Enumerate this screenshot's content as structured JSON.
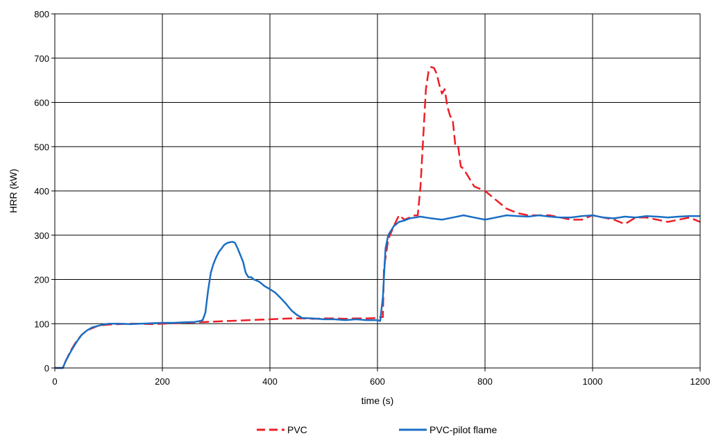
{
  "chart_data": {
    "type": "line",
    "title": "",
    "xlabel": "time (s)",
    "ylabel": "HRR (kW)",
    "xlim": [
      0,
      1200
    ],
    "ylim": [
      0,
      800
    ],
    "xticks": [
      0,
      200,
      400,
      600,
      800,
      1000,
      1200
    ],
    "yticks": [
      0,
      100,
      200,
      300,
      400,
      500,
      600,
      700,
      800
    ],
    "grid": true,
    "legend_position": "bottom",
    "series": [
      {
        "name": "PVC",
        "color": "#ee1c24",
        "style": "dashed",
        "x": [
          0,
          15,
          20,
          30,
          40,
          50,
          60,
          70,
          80,
          90,
          100,
          120,
          140,
          160,
          180,
          200,
          220,
          240,
          260,
          280,
          300,
          320,
          340,
          360,
          380,
          400,
          420,
          440,
          460,
          480,
          500,
          520,
          540,
          560,
          580,
          600,
          605,
          610,
          612,
          620,
          630,
          640,
          650,
          660,
          670,
          675,
          680,
          685,
          690,
          695,
          700,
          705,
          710,
          715,
          720,
          725,
          730,
          735,
          740,
          745,
          750,
          755,
          760,
          770,
          780,
          790,
          800,
          820,
          840,
          860,
          880,
          900,
          920,
          940,
          960,
          980,
          1000,
          1020,
          1040,
          1060,
          1080,
          1100,
          1120,
          1140,
          1160,
          1180,
          1200
        ],
        "y": [
          0,
          0,
          15,
          40,
          60,
          75,
          85,
          90,
          95,
          97,
          98,
          99,
          100,
          100,
          99,
          100,
          101,
          102,
          103,
          104,
          105,
          106,
          107,
          108,
          109,
          110,
          111,
          112,
          112,
          111,
          112,
          112,
          111,
          112,
          112,
          113,
          115,
          115,
          225,
          290,
          320,
          345,
          335,
          340,
          345,
          345,
          410,
          520,
          630,
          670,
          680,
          678,
          665,
          640,
          620,
          630,
          590,
          570,
          560,
          500,
          500,
          455,
          450,
          430,
          410,
          405,
          400,
          380,
          360,
          350,
          345,
          345,
          345,
          340,
          335,
          335,
          345,
          340,
          335,
          325,
          340,
          340,
          335,
          330,
          335,
          340,
          330
        ]
      },
      {
        "name": "PVC-pilot flame",
        "color": "#1a6ec4",
        "style": "solid",
        "x": [
          0,
          15,
          20,
          30,
          40,
          50,
          60,
          70,
          80,
          90,
          100,
          120,
          140,
          160,
          180,
          200,
          220,
          240,
          260,
          270,
          275,
          280,
          285,
          290,
          295,
          300,
          305,
          310,
          315,
          320,
          325,
          330,
          335,
          340,
          345,
          350,
          355,
          360,
          365,
          370,
          380,
          390,
          400,
          410,
          420,
          430,
          440,
          450,
          460,
          480,
          500,
          520,
          540,
          560,
          580,
          600,
          605,
          610,
          615,
          620,
          630,
          640,
          650,
          660,
          670,
          680,
          690,
          700,
          720,
          740,
          760,
          780,
          800,
          820,
          840,
          860,
          880,
          900,
          920,
          940,
          960,
          980,
          1000,
          1020,
          1040,
          1060,
          1080,
          1100,
          1120,
          1140,
          1160,
          1180,
          1200
        ],
        "y": [
          0,
          0,
          15,
          38,
          58,
          75,
          85,
          92,
          95,
          98,
          100,
          100,
          99,
          100,
          101,
          102,
          102,
          103,
          104,
          106,
          108,
          125,
          175,
          215,
          235,
          250,
          262,
          270,
          278,
          282,
          284,
          285,
          283,
          270,
          255,
          240,
          215,
          205,
          205,
          200,
          195,
          185,
          178,
          170,
          158,
          145,
          130,
          120,
          113,
          112,
          110,
          110,
          108,
          110,
          108,
          108,
          106,
          160,
          270,
          300,
          320,
          330,
          333,
          338,
          340,
          342,
          340,
          338,
          335,
          340,
          345,
          340,
          335,
          340,
          345,
          343,
          342,
          345,
          342,
          340,
          340,
          343,
          345,
          340,
          338,
          342,
          340,
          343,
          342,
          340,
          342,
          343,
          343
        ]
      }
    ]
  }
}
